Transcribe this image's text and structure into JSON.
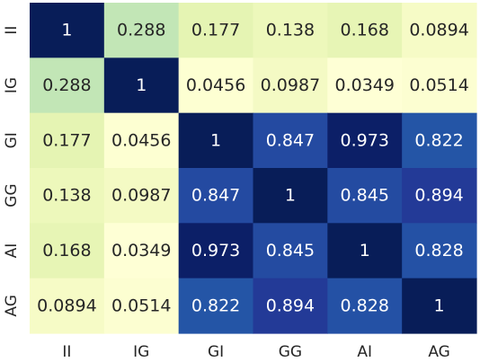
{
  "chart_data": {
    "type": "heatmap",
    "title": "",
    "xlabel": "",
    "ylabel": "",
    "x_categories": [
      "II",
      "IG",
      "GI",
      "GG",
      "AI",
      "AG"
    ],
    "y_categories": [
      "II",
      "IG",
      "GI",
      "GG",
      "AI",
      "AG"
    ],
    "values": [
      [
        1,
        0.288,
        0.177,
        0.138,
        0.168,
        0.0894
      ],
      [
        0.288,
        1,
        0.0456,
        0.0987,
        0.0349,
        0.0514
      ],
      [
        0.177,
        0.0456,
        1,
        0.847,
        0.973,
        0.822
      ],
      [
        0.138,
        0.0987,
        0.847,
        1,
        0.845,
        0.894
      ],
      [
        0.168,
        0.0349,
        0.973,
        0.845,
        1,
        0.828
      ],
      [
        0.0894,
        0.0514,
        0.822,
        0.894,
        0.828,
        1
      ]
    ],
    "cell_labels": [
      [
        "1",
        "0.288",
        "0.177",
        "0.138",
        "0.168",
        "0.0894"
      ],
      [
        "0.288",
        "1",
        "0.0456",
        "0.0987",
        "0.0349",
        "0.0514"
      ],
      [
        "0.177",
        "0.0456",
        "1",
        "0.847",
        "0.973",
        "0.822"
      ],
      [
        "0.138",
        "0.0987",
        "0.847",
        "1",
        "0.845",
        "0.894"
      ],
      [
        "0.168",
        "0.0349",
        "0.973",
        "0.845",
        "1",
        "0.828"
      ],
      [
        "0.0894",
        "0.0514",
        "0.822",
        "0.894",
        "0.828",
        "1"
      ]
    ],
    "colormap": "YlGnBu",
    "colorbar": false,
    "grid": false,
    "legend": "none"
  }
}
